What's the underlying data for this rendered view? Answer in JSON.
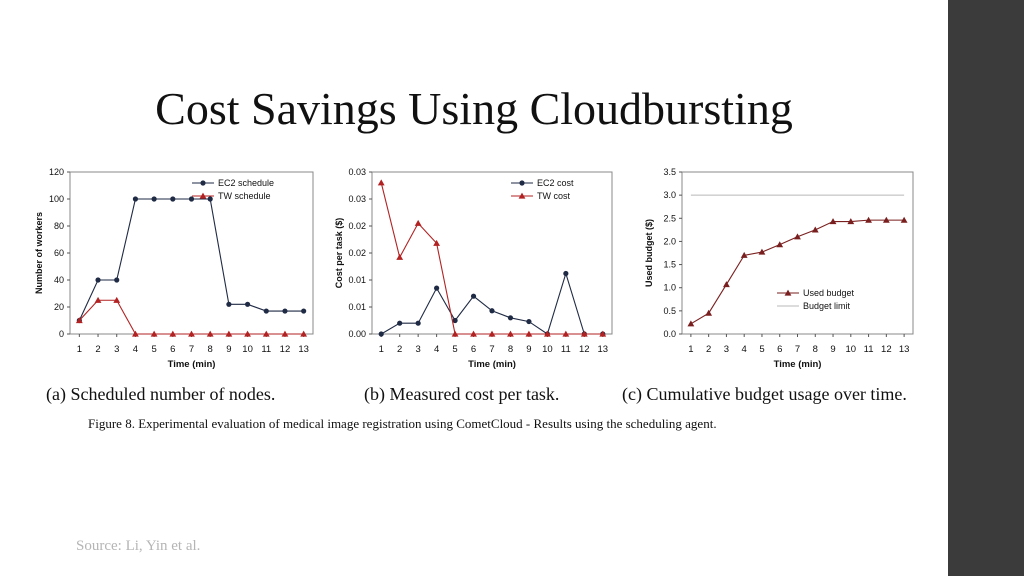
{
  "slide": {
    "title": "Cost Savings Using Cloudbursting",
    "source": "Source: Li, Yin et al.",
    "figure_caption": "Figure 8.   Experimental evaluation of medical image registration using CometCloud - Results using the scheduling agent."
  },
  "chart_data": [
    {
      "type": "line",
      "caption": "(a) Scheduled number of nodes.",
      "xlabel": "Time (min)",
      "ylabel": "Number of workers",
      "x": [
        1,
        2,
        3,
        4,
        5,
        6,
        7,
        8,
        9,
        10,
        11,
        12,
        13
      ],
      "ylim": [
        0,
        120
      ],
      "yticks": [
        0,
        20,
        40,
        60,
        80,
        100,
        120
      ],
      "ytick_labels": [
        "0",
        "20",
        "40",
        "60",
        "80",
        "100",
        "120"
      ],
      "legend": "top-right",
      "series": [
        {
          "name": "EC2 schedule",
          "marker": "circle",
          "color": "#1f2a44",
          "values": [
            10,
            40,
            40,
            100,
            100,
            100,
            100,
            100,
            22,
            22,
            17,
            17,
            17
          ]
        },
        {
          "name": "TW schedule",
          "marker": "triangle",
          "color": "#b22222",
          "values": [
            10,
            25,
            25,
            0,
            0,
            0,
            0,
            0,
            0,
            0,
            0,
            0,
            0
          ]
        }
      ]
    },
    {
      "type": "line",
      "caption": "(b) Measured cost per task.",
      "xlabel": "Time (min)",
      "ylabel": "Cost per task ($)",
      "x": [
        1,
        2,
        3,
        4,
        5,
        6,
        7,
        8,
        9,
        10,
        11,
        12,
        13
      ],
      "ylim": [
        0,
        0.03
      ],
      "yticks": [
        0,
        0.005,
        0.01,
        0.015,
        0.02,
        0.025,
        0.03
      ],
      "ytick_labels": [
        "0.00",
        "0.01",
        "0.01",
        "0.02",
        "0.02",
        "0.03",
        "0.03"
      ],
      "legend": "top-right",
      "series": [
        {
          "name": "EC2 cost",
          "marker": "circle",
          "color": "#1f2a44",
          "values": [
            0,
            0.002,
            0.002,
            0.0085,
            0.0025,
            0.007,
            0.0043,
            0.003,
            0.0023,
            0,
            0.0112,
            0,
            0
          ]
        },
        {
          "name": "TW cost",
          "marker": "triangle",
          "color": "#b22222",
          "values": [
            0.028,
            0.0142,
            0.0205,
            0.0168,
            0,
            0,
            0,
            0,
            0,
            0,
            0,
            0,
            0
          ]
        }
      ]
    },
    {
      "type": "line",
      "caption": "(c) Cumulative budget usage over time.",
      "xlabel": "Time (min)",
      "ylabel": "Used budget ($)",
      "x": [
        1,
        2,
        3,
        4,
        5,
        6,
        7,
        8,
        9,
        10,
        11,
        12,
        13
      ],
      "ylim": [
        0,
        3.5
      ],
      "yticks": [
        0,
        0.5,
        1,
        1.5,
        2,
        2.5,
        3,
        3.5
      ],
      "ytick_labels": [
        "0.0",
        "0.5",
        "1.0",
        "1.5",
        "2.0",
        "2.5",
        "3.0",
        "3.5"
      ],
      "legend": "bottom-right",
      "series": [
        {
          "name": "Used budget",
          "marker": "triangle",
          "color": "#7a1f1f",
          "values": [
            0.22,
            0.45,
            1.07,
            1.7,
            1.77,
            1.93,
            2.1,
            2.25,
            2.43,
            2.43,
            2.46,
            2.46,
            2.46
          ]
        },
        {
          "name": "Budget limit",
          "marker": "none",
          "color": "#b8b8b8",
          "values": [
            3,
            3,
            3,
            3,
            3,
            3,
            3,
            3,
            3,
            3,
            3,
            3,
            3
          ]
        }
      ]
    }
  ]
}
